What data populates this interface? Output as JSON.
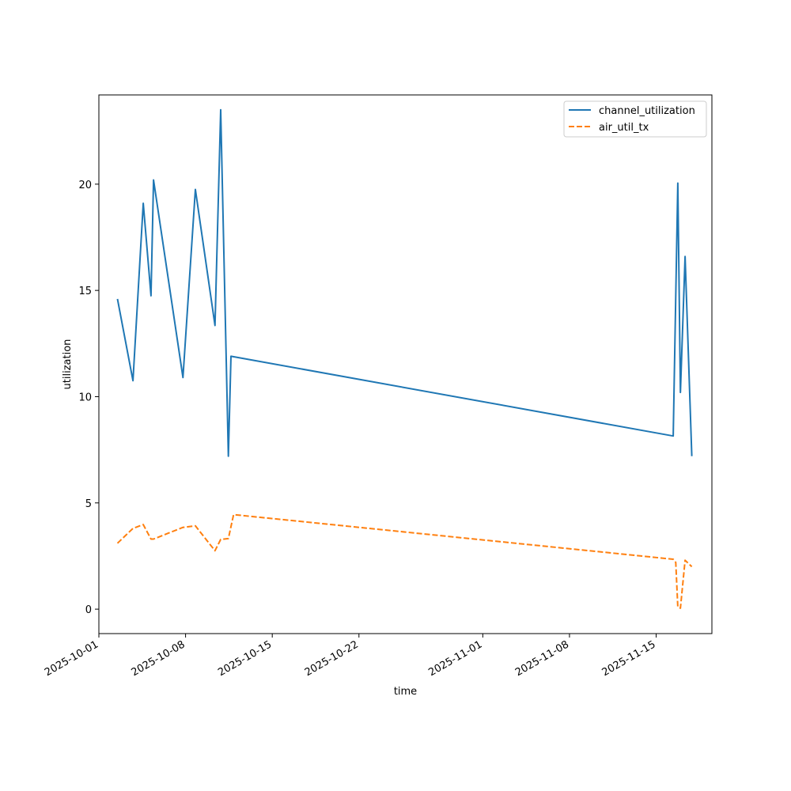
{
  "chart_data": {
    "type": "line",
    "title": "",
    "xlabel": "time",
    "ylabel": "utilization",
    "x_type": "date",
    "xlim": [
      "2025-10-01T00:00",
      "2025-11-19T12:00"
    ],
    "ylim": [
      -1.15,
      24.2
    ],
    "x_ticks": [
      {
        "date": "2025-10-01",
        "label": "2025-10-01"
      },
      {
        "date": "2025-10-08",
        "label": "2025-10-08"
      },
      {
        "date": "2025-10-15",
        "label": "2025-10-15"
      },
      {
        "date": "2025-10-22",
        "label": "2025-10-22"
      },
      {
        "date": "2025-11-01",
        "label": "2025-11-01"
      },
      {
        "date": "2025-11-08",
        "label": "2025-11-08"
      },
      {
        "date": "2025-11-15",
        "label": "2025-11-15"
      }
    ],
    "y_ticks": [
      0,
      5,
      10,
      15,
      20
    ],
    "grid": false,
    "legend_position": "top-right",
    "series": [
      {
        "name": "channel_utilization",
        "color": "#1f77b4",
        "style": "solid",
        "points": [
          {
            "x": "2025-10-02T12:00",
            "y": 14.6
          },
          {
            "x": "2025-10-03T18:00",
            "y": 10.75
          },
          {
            "x": "2025-10-04T14:00",
            "y": 19.1
          },
          {
            "x": "2025-10-05T05:00",
            "y": 14.75
          },
          {
            "x": "2025-10-05T10:00",
            "y": 20.2
          },
          {
            "x": "2025-10-07T19:00",
            "y": 10.9
          },
          {
            "x": "2025-10-08T19:00",
            "y": 19.75
          },
          {
            "x": "2025-10-10T09:00",
            "y": 13.35
          },
          {
            "x": "2025-10-10T20:00",
            "y": 23.5
          },
          {
            "x": "2025-10-11T11:00",
            "y": 7.2
          },
          {
            "x": "2025-10-11T16:00",
            "y": 11.9
          },
          {
            "x": "2025-11-16T09:00",
            "y": 8.15
          },
          {
            "x": "2025-11-16T18:00",
            "y": 20.05
          },
          {
            "x": "2025-11-16T23:00",
            "y": 10.2
          },
          {
            "x": "2025-11-17T08:00",
            "y": 16.6
          },
          {
            "x": "2025-11-17T21:00",
            "y": 7.2
          }
        ]
      },
      {
        "name": "air_util_tx",
        "color": "#ff7f0e",
        "style": "dashed",
        "points": [
          {
            "x": "2025-10-02T12:00",
            "y": 3.1
          },
          {
            "x": "2025-10-03T18:00",
            "y": 3.8
          },
          {
            "x": "2025-10-04T14:00",
            "y": 3.98
          },
          {
            "x": "2025-10-05T05:00",
            "y": 3.3
          },
          {
            "x": "2025-10-05T10:00",
            "y": 3.3
          },
          {
            "x": "2025-10-07T19:00",
            "y": 3.85
          },
          {
            "x": "2025-10-08T19:00",
            "y": 3.92
          },
          {
            "x": "2025-10-10T09:00",
            "y": 2.75
          },
          {
            "x": "2025-10-10T20:00",
            "y": 3.28
          },
          {
            "x": "2025-10-11T11:00",
            "y": 3.32
          },
          {
            "x": "2025-10-11T21:00",
            "y": 4.45
          },
          {
            "x": "2025-11-16T09:00",
            "y": 2.35
          },
          {
            "x": "2025-11-16T14:00",
            "y": 2.2
          },
          {
            "x": "2025-11-16T18:00",
            "y": 0.1
          },
          {
            "x": "2025-11-16T23:00",
            "y": 0.05
          },
          {
            "x": "2025-11-17T08:00",
            "y": 2.3
          },
          {
            "x": "2025-11-17T21:00",
            "y": 2.0
          }
        ]
      }
    ]
  }
}
